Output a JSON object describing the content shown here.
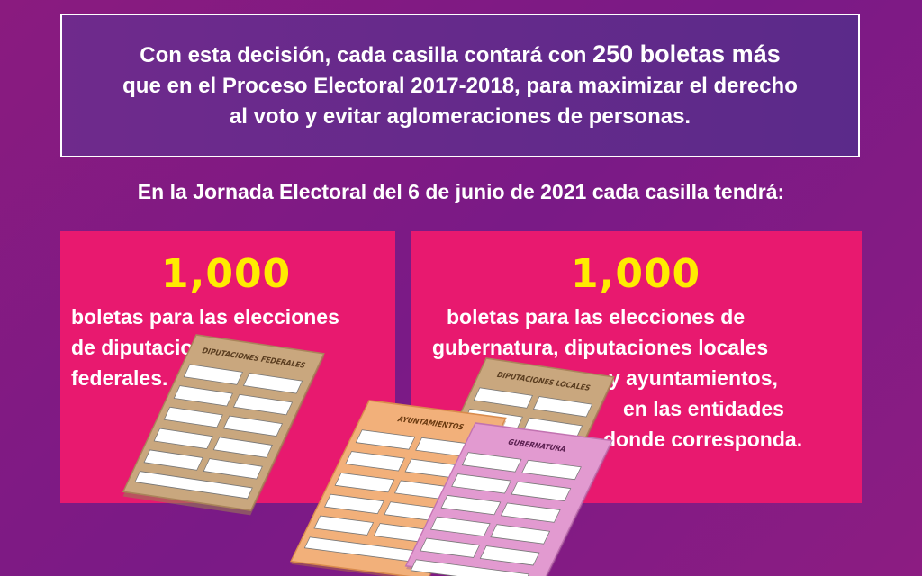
{
  "intro": {
    "line1_pre": "Con esta decisión, cada casilla contará con ",
    "line1_bold": "250 boletas más",
    "line2": "que en el Proceso Electoral 2017-2018, para maximizar el derecho",
    "line3": "al voto y evitar aglomeraciones de personas."
  },
  "subtitle": "En la Jornada Electoral del 6 de junio de 2021 cada casilla tendrá:",
  "left_panel": {
    "count": "1,000",
    "lines": [
      "boletas para las elecciones",
      "de diputaciones",
      "federales."
    ],
    "ballot_label": "DIPUTACIONES FEDERALES"
  },
  "right_panel": {
    "count": "1,000",
    "lines": [
      "boletas para las elecciones de",
      "gubernatura, diputaciones locales",
      "y ayuntamientos,",
      "en las entidades",
      "donde corresponda."
    ],
    "ballot_labels": [
      "DIPUTACIONES LOCALES",
      "AYUNTAMIENTOS",
      "GUBERNATURA"
    ]
  },
  "colors": {
    "background": "#8a1b7f",
    "intro_box": "#5b2a8a",
    "panel": "#e8196f",
    "count": "#ffec00",
    "ballot_federal": "#c9a77e",
    "ballot_local": "#c9a77e",
    "ballot_ayuntamientos": "#f2b07a",
    "ballot_gubernatura": "#e29ad0"
  }
}
